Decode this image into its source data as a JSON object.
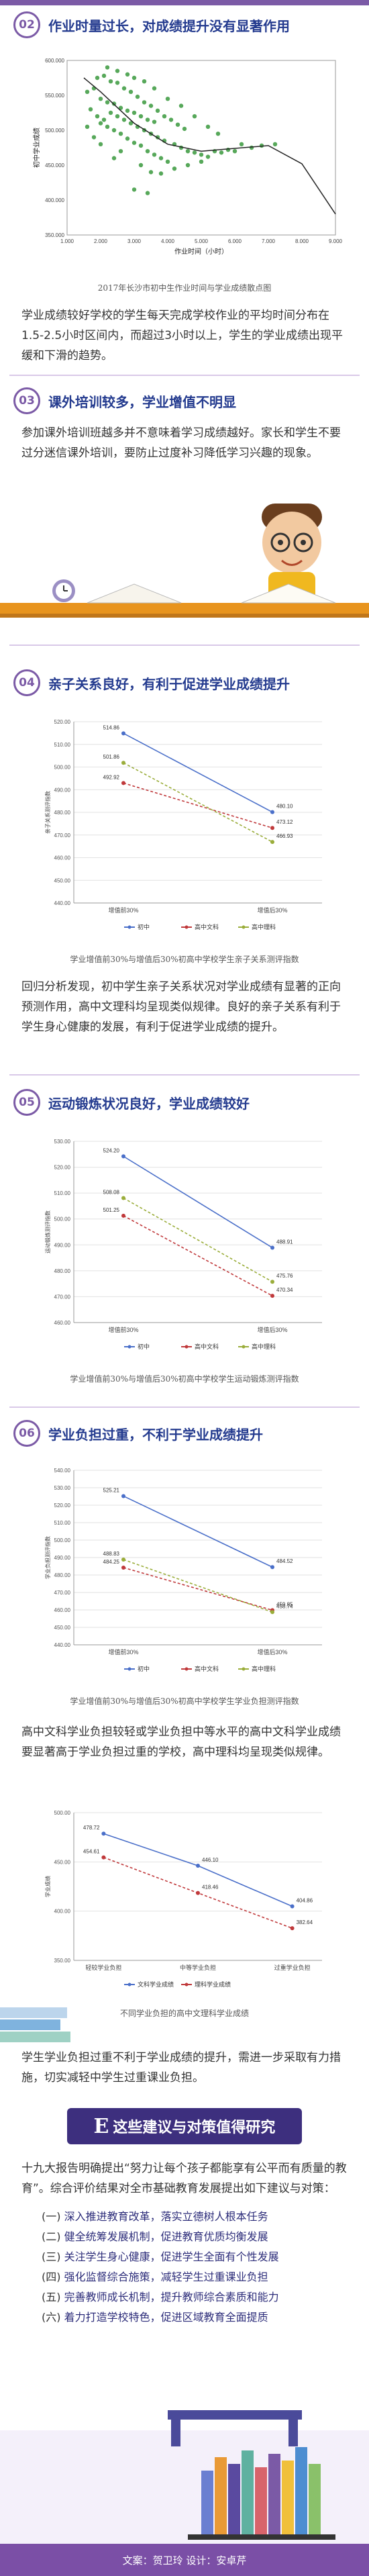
{
  "sections": {
    "s02": {
      "num": "02",
      "title": "作业时量过长，对成绩提升没有显著作用",
      "caption": "2017年长沙市初中生作业时间与学业成绩散点图",
      "para": "学业成绩较好学校的学生每天完成学校作业的平均时间分布在1.5-2.5小时区间内，而超过3小时以上，学生的学业成绩出现平缓和下滑的趋势。"
    },
    "s03": {
      "num": "03",
      "title": "课外培训较多，学业增值不明显",
      "para": "参加课外培训班越多并不意味着学习成绩越好。家长和学生不要过分迷信课外培训，要防止过度补习降低学习兴趣的现象。"
    },
    "s04": {
      "num": "04",
      "title": "亲子关系良好，有利于促进学业成绩提升",
      "caption": "学业增值前30%与增值后30%初高中学校学生亲子关系测评指数",
      "para": "回归分析发现，初中学生亲子关系状况对学业成绩有显著的正向预测作用，高中文理科均呈现类似规律。良好的亲子关系有利于学生身心健康的发展，有利于促进学业成绩的提升。"
    },
    "s05": {
      "num": "05",
      "title": "运动锻炼状况良好，学业成绩较好",
      "caption": "学业增值前30%与增值后30%初高中学校学生运动锻炼测评指数"
    },
    "s06": {
      "num": "06",
      "title": "学业负担过重，不利于学业成绩提升",
      "caption": "学业增值前30%与增值后30%初高中学校学生学业负担测评指数",
      "para": "高中文科学业负担较轻或学业负担中等水平的高中文科学业成绩要显著高于学业负担过重的学校，高中理科均呈现类似规律。",
      "caption2": "不同学业负担的高中文理科学业成绩",
      "para2": "学生学业负担过重不利于学业成绩的提升，需进一步采取有力措施，切实减轻中学生过重课业负担。"
    }
  },
  "suggest": {
    "letter": "E",
    "title": "这些建议与对策值得研究",
    "intro": "十九大报告明确提出“努力让每个孩子都能享有公平而有质量的教育”。综合评价结果对全市基础教育发展提出如下建议与对策：",
    "items": [
      {
        "idx": "(一)",
        "text": "深入推进教育改革，落实立德树人根本任务"
      },
      {
        "idx": "(二)",
        "text": "健全统筹发展机制，促进教育优质均衡发展"
      },
      {
        "idx": "(三)",
        "text": "关注学生身心健康，促进学生全面有个性发展"
      },
      {
        "idx": "(四)",
        "text": "强化监督综合施策，减轻学生过重课业负担"
      },
      {
        "idx": "(五)",
        "text": "完善教师成长机制，提升教师综合素质和能力"
      },
      {
        "idx": "(六)",
        "text": "着力打造学校特色，促进区域教育全面提质"
      }
    ]
  },
  "footer": "文案：贺卫玲  设计：安卓芹",
  "colors": {
    "accent": "#7b5aa6",
    "title": "#243b8f",
    "blue": "#4a6fc9",
    "red": "#c0393b",
    "green": "#9aad3a",
    "shelf": "#e8941e"
  },
  "chart_data": [
    {
      "type": "scatter",
      "ylabel": "初中学业成绩",
      "xlabel": "作业时间（小时）",
      "xlim": [
        1,
        9
      ],
      "ylim": [
        350,
        600
      ],
      "xticks": [
        "1.000",
        "2.000",
        "3.000",
        "4.000",
        "5.000",
        "6.000",
        "7.000",
        "8.000",
        "9.000"
      ],
      "yticks": [
        "350.000",
        "400.000",
        "450.000",
        "500.000",
        "550.000",
        "600.000"
      ],
      "points": [
        [
          1.6,
          555
        ],
        [
          1.8,
          560
        ],
        [
          2.0,
          545
        ],
        [
          2.2,
          540
        ],
        [
          2.4,
          538
        ],
        [
          2.6,
          532
        ],
        [
          2.8,
          528
        ],
        [
          3.0,
          525
        ],
        [
          3.2,
          520
        ],
        [
          3.4,
          515
        ],
        [
          3.6,
          512
        ],
        [
          1.9,
          575
        ],
        [
          2.1,
          578
        ],
        [
          2.3,
          570
        ],
        [
          2.5,
          568
        ],
        [
          2.7,
          560
        ],
        [
          2.9,
          555
        ],
        [
          3.1,
          548
        ],
        [
          3.3,
          540
        ],
        [
          3.5,
          535
        ],
        [
          3.7,
          528
        ],
        [
          3.9,
          520
        ],
        [
          4.1,
          515
        ],
        [
          4.3,
          508
        ],
        [
          4.5,
          502
        ],
        [
          2.0,
          510
        ],
        [
          2.2,
          505
        ],
        [
          2.4,
          500
        ],
        [
          2.6,
          495
        ],
        [
          2.8,
          488
        ],
        [
          3.0,
          482
        ],
        [
          3.2,
          478
        ],
        [
          3.4,
          470
        ],
        [
          3.6,
          465
        ],
        [
          3.8,
          460
        ],
        [
          4.0,
          455
        ],
        [
          1.7,
          530
        ],
        [
          1.9,
          520
        ],
        [
          2.1,
          515
        ],
        [
          2.3,
          525
        ],
        [
          2.5,
          520
        ],
        [
          2.7,
          515
        ],
        [
          2.9,
          510
        ],
        [
          3.1,
          505
        ],
        [
          3.3,
          500
        ],
        [
          3.5,
          495
        ],
        [
          3.7,
          490
        ],
        [
          3.9,
          485
        ],
        [
          4.2,
          480
        ],
        [
          4.4,
          475
        ],
        [
          4.6,
          470
        ],
        [
          4.8,
          468
        ],
        [
          5.0,
          465
        ],
        [
          5.2,
          462
        ],
        [
          5.4,
          470
        ],
        [
          5.6,
          468
        ],
        [
          5.8,
          472
        ],
        [
          6.0,
          470
        ],
        [
          6.2,
          480
        ],
        [
          6.5,
          475
        ],
        [
          6.8,
          478
        ],
        [
          7.2,
          480
        ],
        [
          2.2,
          590
        ],
        [
          2.5,
          585
        ],
        [
          2.8,
          580
        ],
        [
          3.0,
          575
        ],
        [
          3.3,
          570
        ],
        [
          3.6,
          560
        ],
        [
          4.0,
          545
        ],
        [
          4.4,
          535
        ],
        [
          4.8,
          520
        ],
        [
          5.2,
          505
        ],
        [
          5.5,
          495
        ],
        [
          3.2,
          450
        ],
        [
          3.5,
          440
        ],
        [
          3.8,
          438
        ],
        [
          4.2,
          445
        ],
        [
          4.6,
          450
        ],
        [
          5.0,
          455
        ],
        [
          3.0,
          415
        ],
        [
          3.4,
          410
        ],
        [
          2.6,
          470
        ],
        [
          2.4,
          460
        ],
        [
          2.0,
          480
        ],
        [
          1.8,
          490
        ],
        [
          1.6,
          505
        ]
      ],
      "trend": [
        [
          1.5,
          575
        ],
        [
          2,
          555
        ],
        [
          3,
          510
        ],
        [
          4,
          480
        ],
        [
          5,
          470
        ],
        [
          6,
          474
        ],
        [
          7,
          478
        ],
        [
          8,
          452
        ],
        [
          9,
          380
        ]
      ]
    },
    {
      "type": "line",
      "ylabel": "亲子关系测评指数",
      "categories": [
        "增值前30%",
        "增值后30%"
      ],
      "ylim": [
        440,
        520
      ],
      "yticks": [
        440,
        450,
        460,
        470,
        480,
        490,
        500,
        510,
        520
      ],
      "series": [
        {
          "name": "初中",
          "values": [
            514.86,
            480.1
          ]
        },
        {
          "name": "高中文科",
          "values": [
            492.92,
            473.12
          ]
        },
        {
          "name": "高中理科",
          "values": [
            501.86,
            466.93
          ]
        }
      ]
    },
    {
      "type": "line",
      "ylabel": "运动锻炼测评指数",
      "categories": [
        "增值前30%",
        "增值后30%"
      ],
      "ylim": [
        460,
        530
      ],
      "yticks": [
        460,
        470,
        480,
        490,
        500,
        510,
        520,
        530
      ],
      "series": [
        {
          "name": "初中",
          "values": [
            524.2,
            488.91
          ]
        },
        {
          "name": "高中文科",
          "values": [
            501.25,
            470.34
          ]
        },
        {
          "name": "高中理科",
          "values": [
            508.08,
            475.76
          ]
        }
      ]
    },
    {
      "type": "line",
      "ylabel": "学业负担测评指数",
      "categories": [
        "增值前30%",
        "增值后30%"
      ],
      "ylim": [
        440,
        540
      ],
      "yticks": [
        440,
        450,
        460,
        470,
        480,
        490,
        500,
        510,
        520,
        530,
        540
      ],
      "series": [
        {
          "name": "初中",
          "values": [
            525.21,
            484.52
          ]
        },
        {
          "name": "高中文科",
          "values": [
            484.25,
            459.85
          ]
        },
        {
          "name": "高中理科",
          "values": [
            488.83,
            458.74
          ]
        }
      ]
    },
    {
      "type": "line",
      "ylabel": "学业成绩",
      "categories": [
        "轻较学业负担",
        "中等学业负担",
        "过重学业负担"
      ],
      "ylim": [
        350,
        500
      ],
      "yticks": [
        350,
        400,
        450,
        500
      ],
      "series": [
        {
          "name": "文科学业成绩",
          "values": [
            478.72,
            446.1,
            404.86
          ]
        },
        {
          "name": "理科学业成绩",
          "values": [
            454.61,
            418.46,
            382.64
          ]
        }
      ]
    }
  ]
}
